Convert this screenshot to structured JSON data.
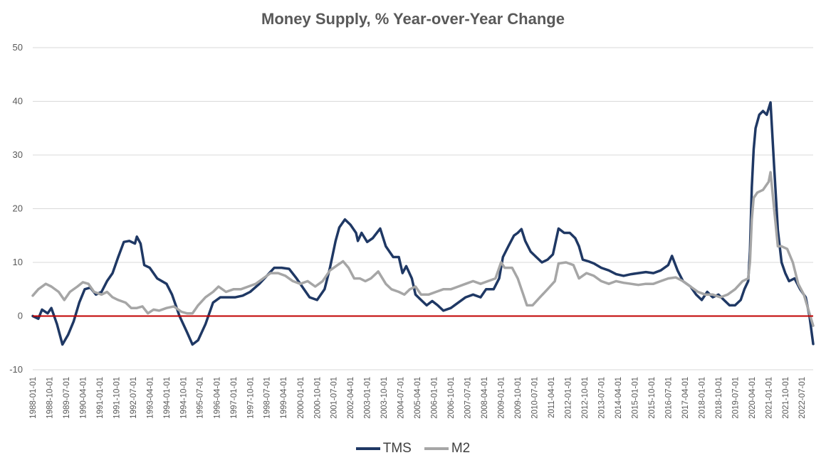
{
  "chart_data": {
    "type": "line",
    "title": "Money Supply, % Year-over-Year Change",
    "xlabel": "",
    "ylabel": "",
    "ylim": [
      -10,
      50
    ],
    "yticks": [
      -10,
      0,
      10,
      20,
      30,
      40,
      50
    ],
    "xlim": [
      "1988-01-01",
      "2023-01-01"
    ],
    "xtick_labels": [
      "1988-01-01",
      "1988-10-01",
      "1989-07-01",
      "1990-04-01",
      "1991-01-01",
      "1991-10-01",
      "1992-07-01",
      "1993-04-01",
      "1994-01-01",
      "1994-10-01",
      "1995-07-01",
      "1996-04-01",
      "1997-01-01",
      "1997-10-01",
      "1998-07-01",
      "1999-04-01",
      "2000-01-01",
      "2000-10-01",
      "2001-07-01",
      "2002-04-01",
      "2003-01-01",
      "2003-10-01",
      "2004-07-01",
      "2005-04-01",
      "2006-01-01",
      "2006-10-01",
      "2007-07-01",
      "2008-04-01",
      "2009-01-01",
      "2009-10-01",
      "2010-07-01",
      "2011-04-01",
      "2012-01-01",
      "2012-10-01",
      "2013-07-01",
      "2014-04-01",
      "2015-01-01",
      "2015-10-01",
      "2016-07-01",
      "2017-04-01",
      "2018-01-01",
      "2018-10-01",
      "2019-07-01",
      "2020-04-01",
      "2021-01-01",
      "2021-10-01",
      "2022-07-01"
    ],
    "grid": "horizontal",
    "legend_position": "bottom",
    "reference_line": {
      "y": 0,
      "color": "#c00000"
    },
    "series": [
      {
        "name": "TMS",
        "color": "#1f3864",
        "points": [
          [
            "1988-01-01",
            0
          ],
          [
            "1988-04-01",
            -0.5
          ],
          [
            "1988-06-01",
            1.2
          ],
          [
            "1988-09-01",
            0.5
          ],
          [
            "1988-11-01",
            1.5
          ],
          [
            "1989-02-01",
            -1.5
          ],
          [
            "1989-05-01",
            -5.3
          ],
          [
            "1989-08-01",
            -3.5
          ],
          [
            "1989-11-01",
            -1
          ],
          [
            "1990-02-01",
            2.5
          ],
          [
            "1990-05-01",
            5
          ],
          [
            "1990-08-01",
            5.3
          ],
          [
            "1990-11-01",
            4
          ],
          [
            "1991-02-01",
            4.5
          ],
          [
            "1991-05-01",
            6.5
          ],
          [
            "1991-08-01",
            8
          ],
          [
            "1991-11-01",
            11
          ],
          [
            "1992-02-01",
            13.8
          ],
          [
            "1992-05-01",
            14
          ],
          [
            "1992-08-01",
            13.5
          ],
          [
            "1992-09-01",
            14.8
          ],
          [
            "1992-11-01",
            13.5
          ],
          [
            "1993-01-01",
            9.5
          ],
          [
            "1993-04-01",
            9
          ],
          [
            "1993-08-01",
            7
          ],
          [
            "1994-01-01",
            6
          ],
          [
            "1994-04-01",
            4
          ],
          [
            "1994-08-01",
            0
          ],
          [
            "1994-12-01",
            -3
          ],
          [
            "1995-03-01",
            -5.3
          ],
          [
            "1995-06-01",
            -4.5
          ],
          [
            "1995-10-01",
            -1.5
          ],
          [
            "1996-02-01",
            2.5
          ],
          [
            "1996-06-01",
            3.5
          ],
          [
            "1996-10-01",
            3.5
          ],
          [
            "1997-02-01",
            3.5
          ],
          [
            "1997-06-01",
            3.8
          ],
          [
            "1997-10-01",
            4.5
          ],
          [
            "1998-03-01",
            6
          ],
          [
            "1998-07-01",
            7.5
          ],
          [
            "1998-11-01",
            9
          ],
          [
            "1999-03-01",
            9
          ],
          [
            "1999-07-01",
            8.8
          ],
          [
            "1999-11-01",
            7
          ],
          [
            "2000-03-01",
            5
          ],
          [
            "2000-06-01",
            3.5
          ],
          [
            "2000-10-01",
            3
          ],
          [
            "2001-02-01",
            5
          ],
          [
            "2001-05-01",
            9
          ],
          [
            "2001-08-01",
            14
          ],
          [
            "2001-10-01",
            16.5
          ],
          [
            "2002-01-01",
            18
          ],
          [
            "2002-04-01",
            17
          ],
          [
            "2002-07-01",
            15.5
          ],
          [
            "2002-08-01",
            14
          ],
          [
            "2002-10-01",
            15.5
          ],
          [
            "2003-01-01",
            13.8
          ],
          [
            "2003-04-01",
            14.5
          ],
          [
            "2003-08-01",
            16.3
          ],
          [
            "2003-11-01",
            13
          ],
          [
            "2004-03-01",
            11
          ],
          [
            "2004-06-01",
            11
          ],
          [
            "2004-08-01",
            8
          ],
          [
            "2004-10-01",
            9.3
          ],
          [
            "2005-01-01",
            7
          ],
          [
            "2005-03-01",
            4
          ],
          [
            "2005-06-01",
            3
          ],
          [
            "2005-09-01",
            2
          ],
          [
            "2005-12-01",
            2.8
          ],
          [
            "2006-03-01",
            2
          ],
          [
            "2006-06-01",
            1
          ],
          [
            "2006-10-01",
            1.5
          ],
          [
            "2007-02-01",
            2.5
          ],
          [
            "2007-06-01",
            3.5
          ],
          [
            "2007-10-01",
            4
          ],
          [
            "2008-02-01",
            3.5
          ],
          [
            "2008-05-01",
            5
          ],
          [
            "2008-09-01",
            5
          ],
          [
            "2008-12-01",
            7
          ],
          [
            "2009-02-01",
            11
          ],
          [
            "2009-05-01",
            13
          ],
          [
            "2009-08-01",
            15
          ],
          [
            "2009-10-01",
            15.5
          ],
          [
            "2009-12-01",
            16.2
          ],
          [
            "2010-02-01",
            14
          ],
          [
            "2010-05-01",
            12
          ],
          [
            "2010-08-01",
            11
          ],
          [
            "2010-11-01",
            10
          ],
          [
            "2011-02-01",
            10.5
          ],
          [
            "2011-05-01",
            11.5
          ],
          [
            "2011-08-01",
            16.3
          ],
          [
            "2011-11-01",
            15.5
          ],
          [
            "2012-02-01",
            15.5
          ],
          [
            "2012-05-01",
            14.5
          ],
          [
            "2012-07-01",
            13
          ],
          [
            "2012-09-01",
            10.5
          ],
          [
            "2012-12-01",
            10.2
          ],
          [
            "2013-03-01",
            9.8
          ],
          [
            "2013-07-01",
            9
          ],
          [
            "2013-11-01",
            8.5
          ],
          [
            "2014-03-01",
            7.8
          ],
          [
            "2014-07-01",
            7.5
          ],
          [
            "2014-11-01",
            7.8
          ],
          [
            "2015-03-01",
            8
          ],
          [
            "2015-07-01",
            8.2
          ],
          [
            "2015-11-01",
            8
          ],
          [
            "2016-03-01",
            8.5
          ],
          [
            "2016-07-01",
            9.5
          ],
          [
            "2016-09-01",
            11.2
          ],
          [
            "2016-12-01",
            8.5
          ],
          [
            "2017-03-01",
            6.5
          ],
          [
            "2017-07-01",
            5.5
          ],
          [
            "2017-10-01",
            4
          ],
          [
            "2018-01-01",
            3
          ],
          [
            "2018-04-01",
            4.5
          ],
          [
            "2018-07-01",
            3.5
          ],
          [
            "2018-10-01",
            4
          ],
          [
            "2019-01-01",
            3
          ],
          [
            "2019-04-01",
            2
          ],
          [
            "2019-07-01",
            2
          ],
          [
            "2019-10-01",
            3
          ],
          [
            "2019-12-01",
            5
          ],
          [
            "2020-02-01",
            6.5
          ],
          [
            "2020-03-01",
            12
          ],
          [
            "2020-04-01",
            24
          ],
          [
            "2020-05-01",
            31
          ],
          [
            "2020-06-01",
            35
          ],
          [
            "2020-08-01",
            37.5
          ],
          [
            "2020-10-01",
            38.2
          ],
          [
            "2020-12-01",
            37.5
          ],
          [
            "2021-02-01",
            39.8
          ],
          [
            "2021-04-01",
            28
          ],
          [
            "2021-06-01",
            16
          ],
          [
            "2021-08-01",
            10
          ],
          [
            "2021-10-01",
            8
          ],
          [
            "2021-12-01",
            6.5
          ],
          [
            "2022-03-01",
            7
          ],
          [
            "2022-06-01",
            5
          ],
          [
            "2022-09-01",
            3.5
          ],
          [
            "2022-11-01",
            0
          ],
          [
            "2023-01-01",
            -5.2
          ]
        ]
      },
      {
        "name": "M2",
        "color": "#a6a6a6",
        "points": [
          [
            "1988-01-01",
            3.8
          ],
          [
            "1988-04-01",
            5
          ],
          [
            "1988-08-01",
            6
          ],
          [
            "1988-11-01",
            5.5
          ],
          [
            "1989-03-01",
            4.5
          ],
          [
            "1989-06-01",
            3
          ],
          [
            "1989-09-01",
            4.5
          ],
          [
            "1990-01-01",
            5.5
          ],
          [
            "1990-04-01",
            6.3
          ],
          [
            "1990-07-01",
            6
          ],
          [
            "1990-10-01",
            4.5
          ],
          [
            "1991-02-01",
            4
          ],
          [
            "1991-05-01",
            4.5
          ],
          [
            "1991-08-01",
            3.5
          ],
          [
            "1991-11-01",
            3
          ],
          [
            "1992-03-01",
            2.5
          ],
          [
            "1992-06-01",
            1.5
          ],
          [
            "1992-09-01",
            1.5
          ],
          [
            "1992-12-01",
            1.8
          ],
          [
            "1993-03-01",
            0.5
          ],
          [
            "1993-06-01",
            1.2
          ],
          [
            "1993-09-01",
            1
          ],
          [
            "1994-01-01",
            1.5
          ],
          [
            "1994-05-01",
            1.8
          ],
          [
            "1994-09-01",
            0.8
          ],
          [
            "1994-12-01",
            0.5
          ],
          [
            "1995-03-01",
            0.5
          ],
          [
            "1995-06-01",
            2
          ],
          [
            "1995-10-01",
            3.5
          ],
          [
            "1996-02-01",
            4.5
          ],
          [
            "1996-05-01",
            5.5
          ],
          [
            "1996-09-01",
            4.5
          ],
          [
            "1997-01-01",
            5
          ],
          [
            "1997-05-01",
            5
          ],
          [
            "1997-09-01",
            5.5
          ],
          [
            "1998-01-01",
            6
          ],
          [
            "1998-05-01",
            7
          ],
          [
            "1998-09-01",
            8
          ],
          [
            "1999-01-01",
            8
          ],
          [
            "1999-05-01",
            7.5
          ],
          [
            "1999-09-01",
            6.5
          ],
          [
            "2000-01-01",
            6
          ],
          [
            "2000-05-01",
            6.5
          ],
          [
            "2000-09-01",
            5.5
          ],
          [
            "2001-01-01",
            6.5
          ],
          [
            "2001-05-01",
            8.5
          ],
          [
            "2001-09-01",
            9.5
          ],
          [
            "2001-12-01",
            10.2
          ],
          [
            "2002-03-01",
            9
          ],
          [
            "2002-06-01",
            7
          ],
          [
            "2002-09-01",
            7
          ],
          [
            "2002-12-01",
            6.5
          ],
          [
            "2003-03-01",
            7
          ],
          [
            "2003-07-01",
            8.3
          ],
          [
            "2003-11-01",
            6
          ],
          [
            "2004-02-01",
            5
          ],
          [
            "2004-06-01",
            4.5
          ],
          [
            "2004-09-01",
            4
          ],
          [
            "2004-12-01",
            5
          ],
          [
            "2005-03-01",
            5.5
          ],
          [
            "2005-06-01",
            4
          ],
          [
            "2005-10-01",
            4
          ],
          [
            "2006-02-01",
            4.5
          ],
          [
            "2006-06-01",
            5
          ],
          [
            "2006-10-01",
            5
          ],
          [
            "2007-02-01",
            5.5
          ],
          [
            "2007-06-01",
            6
          ],
          [
            "2007-10-01",
            6.5
          ],
          [
            "2008-02-01",
            6
          ],
          [
            "2008-06-01",
            6.5
          ],
          [
            "2008-10-01",
            7
          ],
          [
            "2009-01-01",
            10
          ],
          [
            "2009-03-01",
            9
          ],
          [
            "2009-07-01",
            9
          ],
          [
            "2009-10-01",
            7
          ],
          [
            "2010-01-01",
            4
          ],
          [
            "2010-03-01",
            2
          ],
          [
            "2010-06-01",
            2
          ],
          [
            "2010-10-01",
            3.5
          ],
          [
            "2011-02-01",
            5
          ],
          [
            "2011-06-01",
            6.5
          ],
          [
            "2011-08-01",
            9.8
          ],
          [
            "2011-12-01",
            10
          ],
          [
            "2012-04-01",
            9.5
          ],
          [
            "2012-07-01",
            7
          ],
          [
            "2012-11-01",
            8
          ],
          [
            "2013-03-01",
            7.5
          ],
          [
            "2013-07-01",
            6.5
          ],
          [
            "2013-11-01",
            6
          ],
          [
            "2014-03-01",
            6.5
          ],
          [
            "2014-07-01",
            6.2
          ],
          [
            "2014-11-01",
            6
          ],
          [
            "2015-03-01",
            5.8
          ],
          [
            "2015-07-01",
            6
          ],
          [
            "2015-11-01",
            6
          ],
          [
            "2016-03-01",
            6.5
          ],
          [
            "2016-07-01",
            7
          ],
          [
            "2016-11-01",
            7.2
          ],
          [
            "2017-03-01",
            6.5
          ],
          [
            "2017-07-01",
            5.5
          ],
          [
            "2017-11-01",
            4.5
          ],
          [
            "2018-03-01",
            4
          ],
          [
            "2018-07-01",
            4
          ],
          [
            "2018-11-01",
            3.5
          ],
          [
            "2019-03-01",
            4
          ],
          [
            "2019-07-01",
            5
          ],
          [
            "2019-11-01",
            6.5
          ],
          [
            "2020-02-01",
            7
          ],
          [
            "2020-03-01",
            10
          ],
          [
            "2020-04-01",
            18
          ],
          [
            "2020-05-01",
            22
          ],
          [
            "2020-07-01",
            23
          ],
          [
            "2020-10-01",
            23.5
          ],
          [
            "2021-01-01",
            25
          ],
          [
            "2021-02-01",
            26.8
          ],
          [
            "2021-04-01",
            20
          ],
          [
            "2021-06-01",
            13
          ],
          [
            "2021-08-01",
            13
          ],
          [
            "2021-11-01",
            12.5
          ],
          [
            "2022-02-01",
            10
          ],
          [
            "2022-05-01",
            6
          ],
          [
            "2022-08-01",
            4
          ],
          [
            "2022-11-01",
            0.5
          ],
          [
            "2023-01-01",
            -1.8
          ]
        ]
      }
    ]
  }
}
